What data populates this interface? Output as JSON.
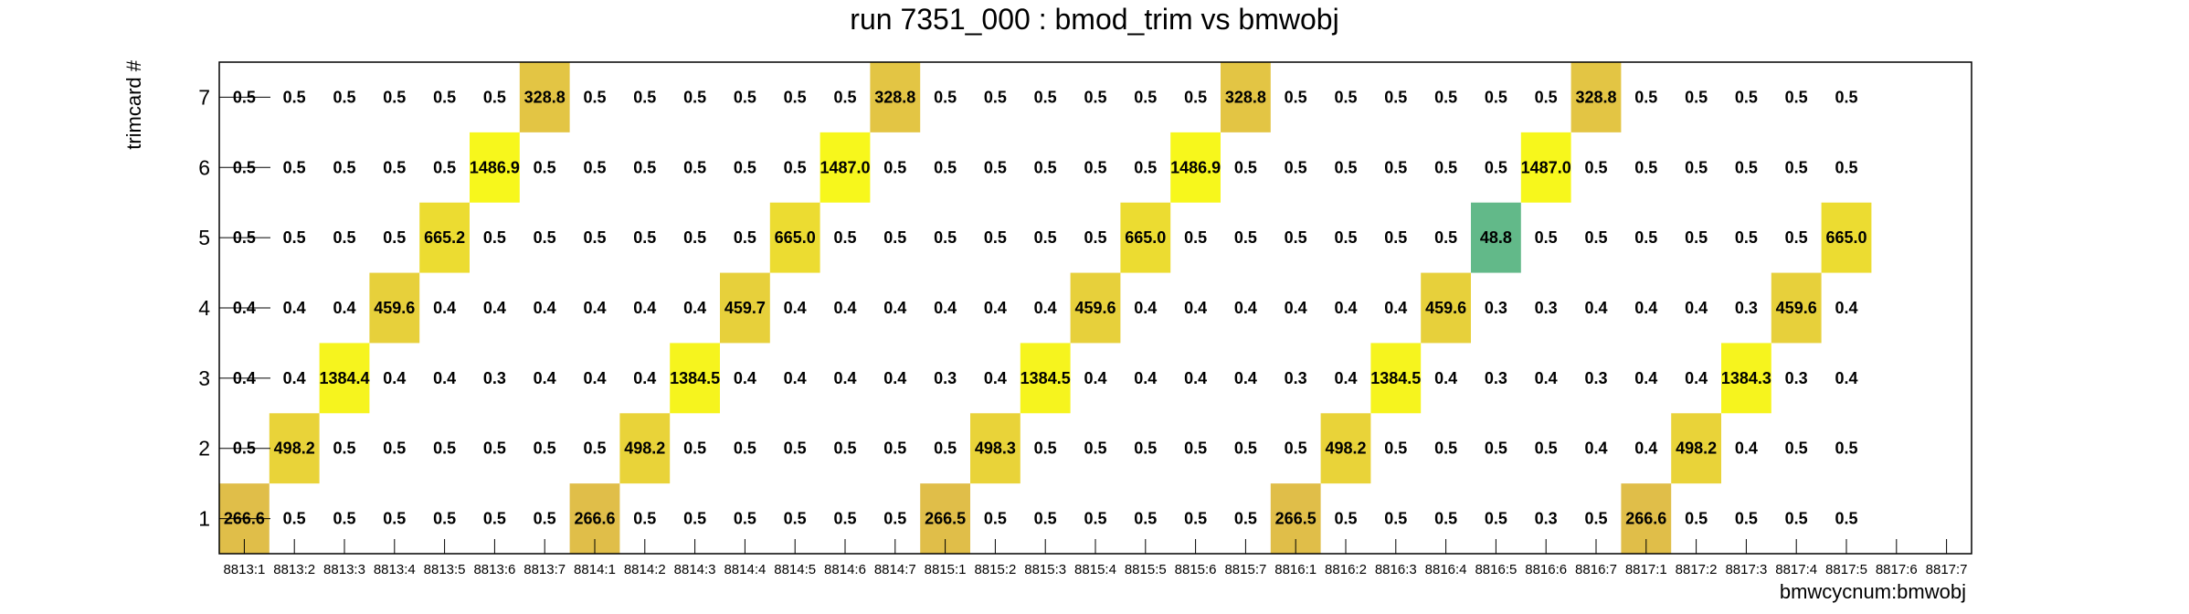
{
  "chart_data": {
    "type": "heatmap",
    "title": "run 7351_000 : bmod_trim vs bmwobj",
    "xlabel": "bmwcycnum:bmwobj",
    "ylabel": "trimcard #",
    "x_categories": [
      "8813:1",
      "8813:2",
      "8813:3",
      "8813:4",
      "8813:5",
      "8813:6",
      "8813:7",
      "8814:1",
      "8814:2",
      "8814:3",
      "8814:4",
      "8814:5",
      "8814:6",
      "8814:7",
      "8815:1",
      "8815:2",
      "8815:3",
      "8815:4",
      "8815:5",
      "8815:6",
      "8815:7",
      "8816:1",
      "8816:2",
      "8816:3",
      "8816:4",
      "8816:5",
      "8816:6",
      "8816:7",
      "8817:1",
      "8817:2",
      "8817:3",
      "8817:4",
      "8817:5",
      "8817:6",
      "8817:7"
    ],
    "y_categories": [
      "1",
      "2",
      "3",
      "4",
      "5",
      "6",
      "7"
    ],
    "rows": {
      "7": [
        "0.5",
        "0.5",
        "0.5",
        "0.5",
        "0.5",
        "0.5",
        "328.8",
        "0.5",
        "0.5",
        "0.5",
        "0.5",
        "0.5",
        "0.5",
        "328.8",
        "0.5",
        "0.5",
        "0.5",
        "0.5",
        "0.5",
        "0.5",
        "328.8",
        "0.5",
        "0.5",
        "0.5",
        "0.5",
        "0.5",
        "0.5",
        "328.8",
        "0.5",
        "0.5",
        "0.5",
        "0.5",
        "0.5",
        null,
        null
      ],
      "6": [
        "0.5",
        "0.5",
        "0.5",
        "0.5",
        "0.5",
        "1486.9",
        "0.5",
        "0.5",
        "0.5",
        "0.5",
        "0.5",
        "0.5",
        "1487.0",
        "0.5",
        "0.5",
        "0.5",
        "0.5",
        "0.5",
        "0.5",
        "1486.9",
        "0.5",
        "0.5",
        "0.5",
        "0.5",
        "0.5",
        "0.5",
        "1487.0",
        "0.5",
        "0.5",
        "0.5",
        "0.5",
        "0.5",
        "0.5",
        null,
        null
      ],
      "5": [
        "0.5",
        "0.5",
        "0.5",
        "0.5",
        "665.2",
        "0.5",
        "0.5",
        "0.5",
        "0.5",
        "0.5",
        "0.5",
        "665.0",
        "0.5",
        "0.5",
        "0.5",
        "0.5",
        "0.5",
        "0.5",
        "665.0",
        "0.5",
        "0.5",
        "0.5",
        "0.5",
        "0.5",
        "0.5",
        "48.8",
        "0.5",
        "0.5",
        "0.5",
        "0.5",
        "0.5",
        "0.5",
        "665.0",
        null,
        null
      ],
      "4": [
        "0.4",
        "0.4",
        "0.4",
        "459.6",
        "0.4",
        "0.4",
        "0.4",
        "0.4",
        "0.4",
        "0.4",
        "459.7",
        "0.4",
        "0.4",
        "0.4",
        "0.4",
        "0.4",
        "0.4",
        "459.6",
        "0.4",
        "0.4",
        "0.4",
        "0.4",
        "0.4",
        "0.4",
        "459.6",
        "0.3",
        "0.3",
        "0.4",
        "0.4",
        "0.4",
        "0.3",
        "459.6",
        "0.4",
        null,
        null
      ],
      "3": [
        "0.4",
        "0.4",
        "1384.4",
        "0.4",
        "0.4",
        "0.3",
        "0.4",
        "0.4",
        "0.4",
        "1384.5",
        "0.4",
        "0.4",
        "0.4",
        "0.4",
        "0.3",
        "0.4",
        "1384.5",
        "0.4",
        "0.4",
        "0.4",
        "0.4",
        "0.3",
        "0.4",
        "1384.5",
        "0.4",
        "0.3",
        "0.4",
        "0.3",
        "0.4",
        "0.4",
        "1384.3",
        "0.3",
        "0.4",
        null,
        null
      ],
      "2": [
        "0.5",
        "498.2",
        "0.5",
        "0.5",
        "0.5",
        "0.5",
        "0.5",
        "0.5",
        "498.2",
        "0.5",
        "0.5",
        "0.5",
        "0.5",
        "0.5",
        "0.5",
        "498.3",
        "0.5",
        "0.5",
        "0.5",
        "0.5",
        "0.5",
        "0.5",
        "498.2",
        "0.5",
        "0.5",
        "0.5",
        "0.5",
        "0.4",
        "0.4",
        "498.2",
        "0.4",
        "0.5",
        "0.5",
        null,
        null
      ],
      "1": [
        "266.6",
        "0.5",
        "0.5",
        "0.5",
        "0.5",
        "0.5",
        "0.5",
        "266.6",
        "0.5",
        "0.5",
        "0.5",
        "0.5",
        "0.5",
        "0.5",
        "266.5",
        "0.5",
        "0.5",
        "0.5",
        "0.5",
        "0.5",
        "0.5",
        "266.5",
        "0.5",
        "0.5",
        "0.5",
        "0.5",
        "0.3",
        "0.5",
        "266.6",
        "0.5",
        "0.5",
        "0.5",
        "0.5",
        null,
        null
      ]
    },
    "color_scale": {
      "min_color": "#53b990",
      "mid_color": "#e0bd4a",
      "max_color": "#f7f71c",
      "threshold_colored": 10
    },
    "grid": false,
    "legend": "none"
  }
}
